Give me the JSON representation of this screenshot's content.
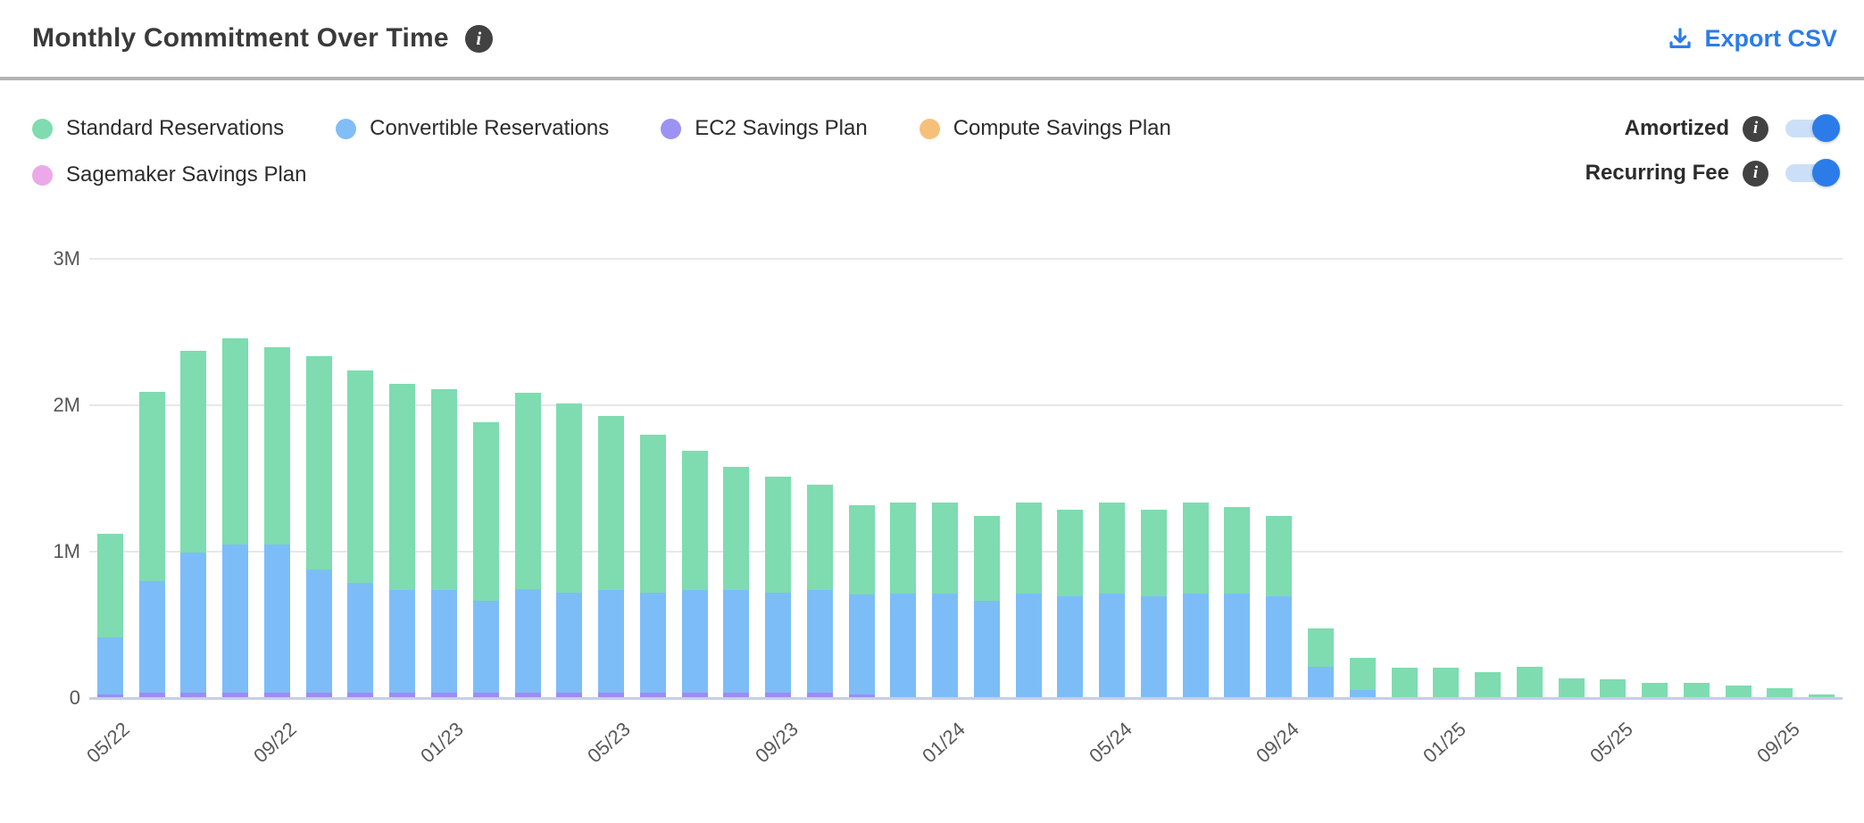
{
  "header": {
    "title": "Monthly Commitment Over Time",
    "export_label": "Export CSV"
  },
  "legend": {
    "items": [
      {
        "label": "Standard Reservations",
        "color": "#7edcb0"
      },
      {
        "label": "Convertible Reservations",
        "color": "#82bdf6"
      },
      {
        "label": "EC2 Savings Plan",
        "color": "#9b92f3"
      },
      {
        "label": "Compute Savings Plan",
        "color": "#f6c07a"
      },
      {
        "label": "Sagemaker Savings Plan",
        "color": "#eca9e9"
      }
    ]
  },
  "toggles": [
    {
      "label": "Amortized",
      "state": "on"
    },
    {
      "label": "Recurring Fee",
      "state": "on"
    }
  ],
  "colors": {
    "accent_blue": "#2b7ce9",
    "toggle_track": "#cbdff8",
    "info_badge": "#424242",
    "gridline": "#e7e7e7",
    "baseline": "#c7cfe8"
  },
  "chart_data": {
    "type": "bar",
    "stacked": true,
    "title": "Monthly Commitment Over Time",
    "value_unit": "millions",
    "ylim": [
      0,
      3000000
    ],
    "y_ticks": [
      "0",
      "1M",
      "2M",
      "3M"
    ],
    "x_tick_labels": [
      "05/22",
      "09/22",
      "01/23",
      "05/23",
      "09/23",
      "01/24",
      "05/24",
      "09/24",
      "01/25",
      "05/25",
      "09/25"
    ],
    "x_tick_every": 4,
    "grid": true,
    "legend_position": "top",
    "categories": [
      "05/22",
      "06/22",
      "07/22",
      "08/22",
      "09/22",
      "10/22",
      "11/22",
      "12/22",
      "01/23",
      "02/23",
      "03/23",
      "04/23",
      "05/23",
      "06/23",
      "07/23",
      "08/23",
      "09/23",
      "10/23",
      "11/23",
      "12/23",
      "01/24",
      "02/24",
      "03/24",
      "04/24",
      "05/24",
      "06/24",
      "07/24",
      "08/24",
      "09/24",
      "10/24",
      "11/24",
      "12/24",
      "01/25",
      "02/25",
      "03/25",
      "04/25",
      "05/25",
      "06/25",
      "07/25",
      "08/25",
      "09/25",
      "10/25"
    ],
    "series": [
      {
        "name": "Standard Reservations",
        "color": "#7edcb0",
        "values": [
          0.71,
          1.29,
          1.38,
          1.41,
          1.35,
          1.46,
          1.45,
          1.41,
          1.37,
          1.22,
          1.34,
          1.29,
          1.19,
          1.08,
          0.95,
          0.84,
          0.79,
          0.72,
          0.61,
          0.62,
          0.62,
          0.58,
          0.62,
          0.59,
          0.62,
          0.59,
          0.62,
          0.59,
          0.55,
          0.26,
          0.22,
          0.2,
          0.2,
          0.17,
          0.21,
          0.13,
          0.12,
          0.1,
          0.1,
          0.08,
          0.06,
          0.02
        ]
      },
      {
        "name": "Convertible Reservations",
        "color": "#7cbdf8",
        "values": [
          0.39,
          0.76,
          0.96,
          1.01,
          1.01,
          0.84,
          0.75,
          0.7,
          0.7,
          0.63,
          0.71,
          0.68,
          0.7,
          0.68,
          0.7,
          0.7,
          0.68,
          0.7,
          0.68,
          0.71,
          0.71,
          0.66,
          0.71,
          0.69,
          0.71,
          0.69,
          0.71,
          0.71,
          0.69,
          0.21,
          0.05,
          0,
          0,
          0,
          0,
          0,
          0,
          0,
          0,
          0,
          0,
          0
        ]
      },
      {
        "name": "EC2 Savings Plan",
        "color": "#a08bf2",
        "values": [
          0.02,
          0.03,
          0.03,
          0.03,
          0.03,
          0.03,
          0.03,
          0.03,
          0.03,
          0.03,
          0.03,
          0.03,
          0.03,
          0.03,
          0.03,
          0.03,
          0.03,
          0.03,
          0.02,
          0,
          0,
          0,
          0,
          0,
          0,
          0,
          0,
          0,
          0,
          0,
          0,
          0,
          0,
          0,
          0,
          0,
          0,
          0,
          0,
          0,
          0,
          0
        ]
      },
      {
        "name": "Compute Savings Plan",
        "color": "#f6c07a",
        "values": [
          0,
          0,
          0,
          0,
          0,
          0,
          0,
          0,
          0,
          0,
          0,
          0,
          0,
          0,
          0,
          0,
          0,
          0,
          0,
          0,
          0,
          0,
          0,
          0,
          0,
          0,
          0,
          0,
          0,
          0,
          0,
          0,
          0,
          0,
          0,
          0,
          0,
          0,
          0,
          0,
          0,
          0
        ]
      },
      {
        "name": "Sagemaker Savings Plan",
        "color": "#eca9e9",
        "values": [
          0,
          0,
          0,
          0,
          0,
          0,
          0,
          0,
          0,
          0,
          0,
          0,
          0,
          0,
          0,
          0,
          0,
          0,
          0,
          0,
          0,
          0,
          0,
          0,
          0,
          0,
          0,
          0,
          0,
          0,
          0,
          0,
          0,
          0,
          0,
          0,
          0,
          0,
          0,
          0,
          0,
          0
        ]
      }
    ],
    "stack_order_bottom_to_top": [
      "EC2 Savings Plan",
      "Sagemaker Savings Plan",
      "Convertible Reservations",
      "Standard Reservations",
      "Compute Savings Plan"
    ]
  }
}
